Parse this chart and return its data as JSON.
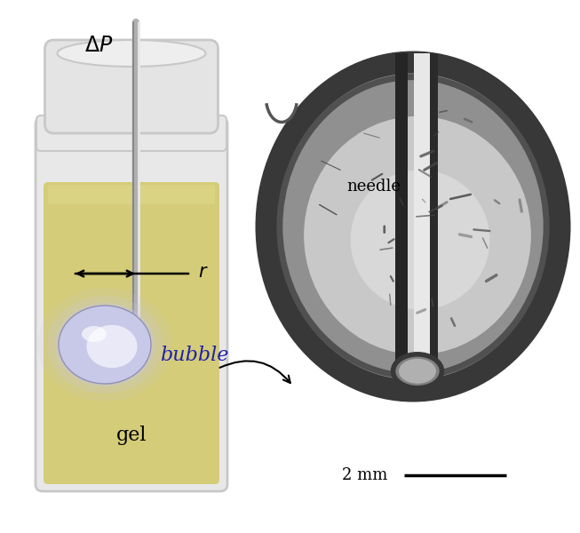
{
  "fig_width": 6.53,
  "fig_height": 6.0,
  "bg_color": "#ffffff",
  "gel_color": "#d4cc78",
  "gel_color_top": "#ddd688",
  "gel_edge_color": "#c0b860",
  "bottle_glass_color": "#e8e8e8",
  "bottle_glass_edge": "#c8c8c8",
  "cap_color": "#e4e4e4",
  "cap_edge": "#c8c8c8",
  "needle_color": "#b0b0b0",
  "needle_highlight": "#e8e8e8",
  "needle_shadow": "#888888",
  "bubble_lavender": "#c8c8e8",
  "bubble_inner": "#f0f0ff",
  "label_bubble_color": "#2020aa",
  "delta_p_label": "ΔP",
  "r_label": "r",
  "bubble_label": "bubble",
  "gel_label": "gel",
  "needle_label": "needle",
  "scale_label": "2 mm"
}
